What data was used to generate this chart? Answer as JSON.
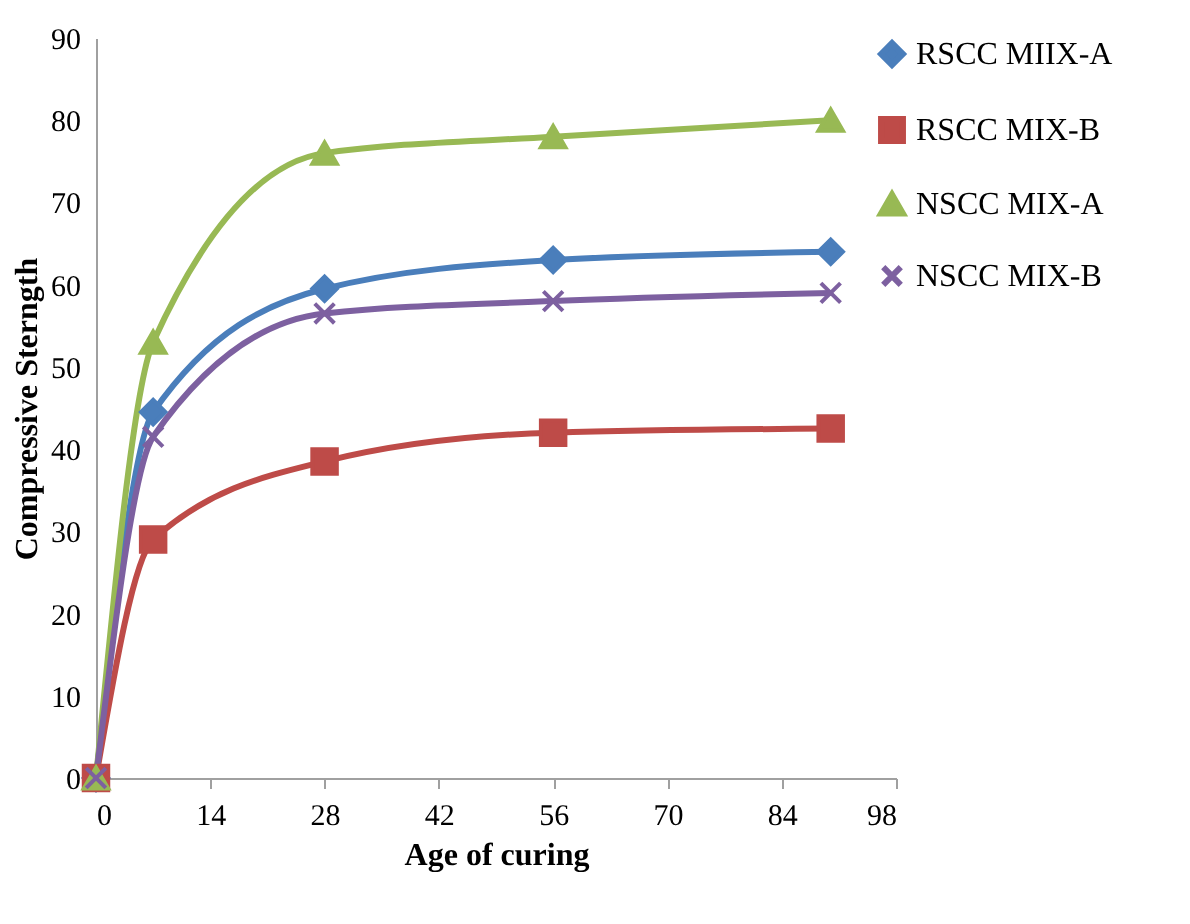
{
  "chart_data": {
    "type": "line",
    "xlabel": "Age of curing",
    "ylabel": "Compressive Sterngth",
    "x": [
      0,
      7,
      28,
      56,
      90
    ],
    "series": [
      {
        "name": "RSCC MIIX-A",
        "color": "#4a7ebb",
        "marker": "diamond",
        "values": [
          0,
          44.5,
          59.5,
          63,
          64
        ]
      },
      {
        "name": "RSCC MIX-B",
        "color": "#be4b48",
        "marker": "square",
        "values": [
          0,
          29,
          38.5,
          42,
          42.5
        ]
      },
      {
        "name": "NSCC MIX-A",
        "color": "#98b954",
        "marker": "triangle",
        "values": [
          0,
          53,
          76,
          78,
          80
        ]
      },
      {
        "name": "NSCC MIX-B",
        "color": "#7d60a0",
        "marker": "cross",
        "values": [
          0,
          41.5,
          56.5,
          58,
          59
        ]
      }
    ],
    "xlim": [
      0,
      98
    ],
    "xticks": [
      0,
      14,
      28,
      42,
      56,
      70,
      84,
      98
    ],
    "ylim": [
      0,
      90
    ],
    "yticks": [
      0,
      10,
      20,
      30,
      40,
      50,
      60,
      70,
      80,
      90
    ],
    "grid": false,
    "legend": "right",
    "line_style": "solid"
  }
}
